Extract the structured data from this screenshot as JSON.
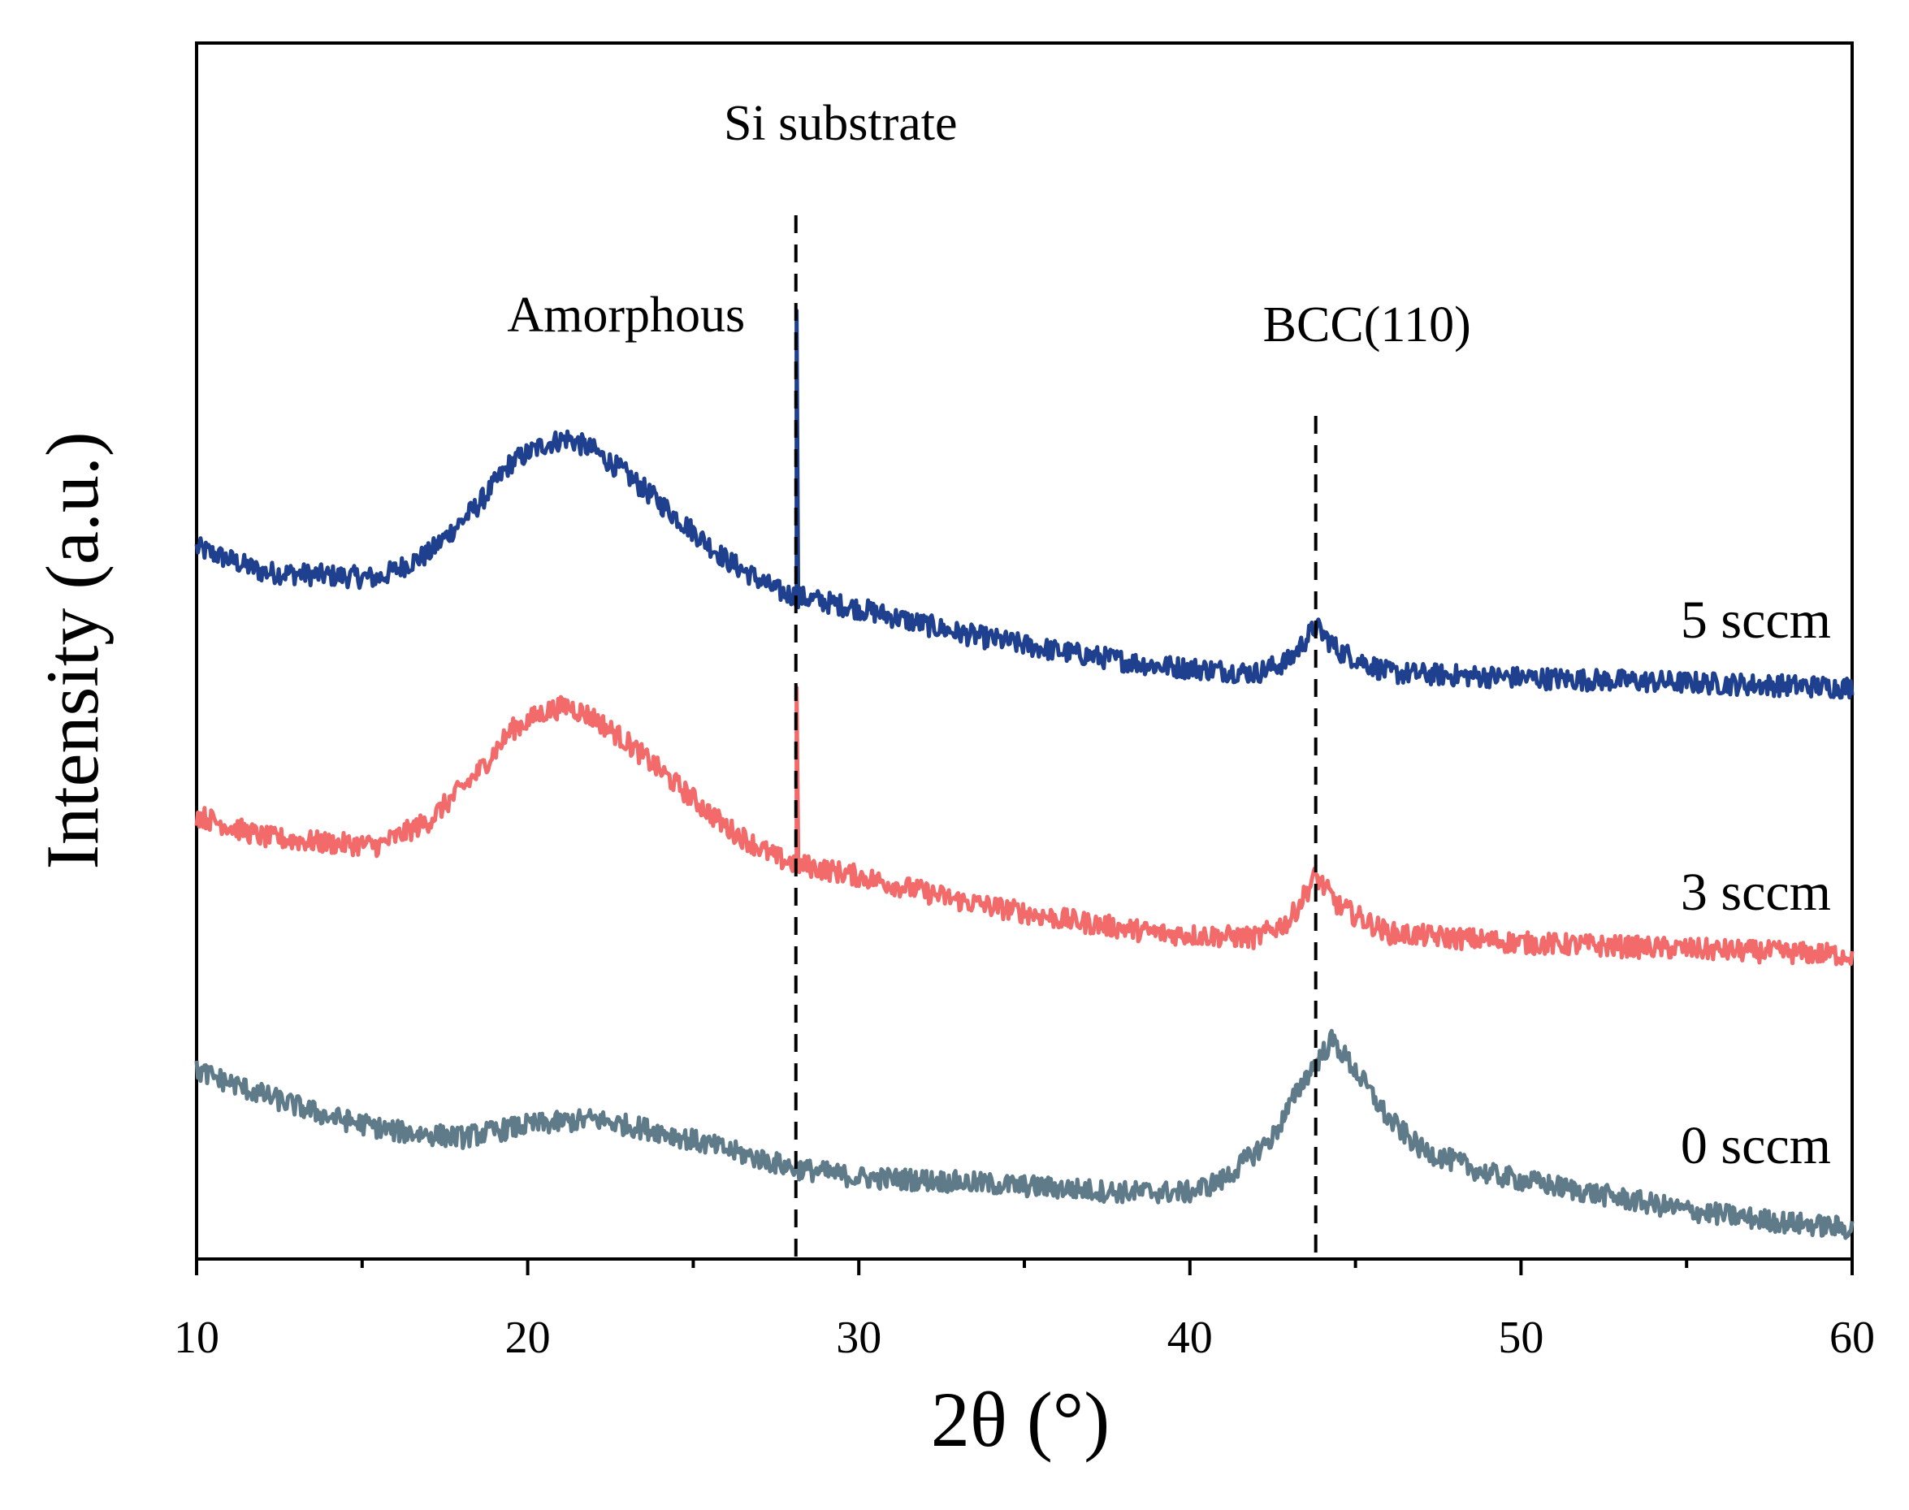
{
  "chart_data": {
    "type": "line",
    "title": "",
    "xlabel": "2θ (°)",
    "ylabel": "Intensity (a.u.)",
    "xlim": [
      10,
      60
    ],
    "ylim": [
      0,
      1
    ],
    "x_ticks": [
      10,
      20,
      30,
      40,
      50,
      60
    ],
    "x_minor_step": 5,
    "y_ticks_shown": false,
    "grid": false,
    "legend": "none (inline labels at right)",
    "series": [
      {
        "name": "5 sccm",
        "color": "#1f3f8f",
        "offset": 0.47,
        "points": [
          [
            10,
            0.115
          ],
          [
            12,
            0.095
          ],
          [
            14,
            0.092
          ],
          [
            15.5,
            0.09
          ],
          [
            17,
            0.11
          ],
          [
            18.5,
            0.15
          ],
          [
            19.5,
            0.185
          ],
          [
            20.5,
            0.2
          ],
          [
            21.2,
            0.205
          ],
          [
            22,
            0.195
          ],
          [
            23,
            0.175
          ],
          [
            24.5,
            0.14
          ],
          [
            26,
            0.105
          ],
          [
            27.5,
            0.08
          ],
          [
            28.1,
            0.075
          ],
          [
            30,
            0.065
          ],
          [
            33,
            0.045
          ],
          [
            36,
            0.03
          ],
          [
            39,
            0.018
          ],
          [
            42,
            0.012
          ],
          [
            43,
            0.022
          ],
          [
            43.8,
            0.05
          ],
          [
            44.5,
            0.03
          ],
          [
            46,
            0.012
          ],
          [
            50,
            0.008
          ],
          [
            55,
            0.004
          ],
          [
            60,
            0.0
          ]
        ]
      },
      {
        "name": "3 sccm",
        "color": "#f26a6a",
        "offset": 0.25,
        "points": [
          [
            10,
            0.115
          ],
          [
            12,
            0.097
          ],
          [
            14,
            0.092
          ],
          [
            15.5,
            0.09
          ],
          [
            17,
            0.11
          ],
          [
            18.5,
            0.15
          ],
          [
            19.5,
            0.185
          ],
          [
            20.5,
            0.2
          ],
          [
            21.2,
            0.205
          ],
          [
            22,
            0.195
          ],
          [
            23,
            0.175
          ],
          [
            24.5,
            0.14
          ],
          [
            26,
            0.105
          ],
          [
            27.5,
            0.08
          ],
          [
            28.1,
            0.075
          ],
          [
            30,
            0.065
          ],
          [
            33,
            0.045
          ],
          [
            36,
            0.03
          ],
          [
            39,
            0.018
          ],
          [
            42,
            0.014
          ],
          [
            43,
            0.028
          ],
          [
            43.8,
            0.065
          ],
          [
            44.5,
            0.04
          ],
          [
            46,
            0.018
          ],
          [
            50,
            0.01
          ],
          [
            55,
            0.005
          ],
          [
            60,
            0.0
          ]
        ]
      },
      {
        "name": "0 sccm",
        "color": "#5f7b8a",
        "offset": 0.025,
        "points": [
          [
            10,
            0.13
          ],
          [
            12,
            0.11
          ],
          [
            14,
            0.092
          ],
          [
            16,
            0.08
          ],
          [
            18,
            0.075
          ],
          [
            20,
            0.085
          ],
          [
            22,
            0.09
          ],
          [
            24,
            0.08
          ],
          [
            26,
            0.065
          ],
          [
            28,
            0.05
          ],
          [
            30,
            0.042
          ],
          [
            32,
            0.04
          ],
          [
            35,
            0.035
          ],
          [
            38,
            0.03
          ],
          [
            40,
            0.03
          ],
          [
            41,
            0.04
          ],
          [
            42.5,
            0.075
          ],
          [
            43.5,
            0.125
          ],
          [
            44.3,
            0.155
          ],
          [
            45,
            0.13
          ],
          [
            46,
            0.09
          ],
          [
            47,
            0.065
          ],
          [
            49,
            0.045
          ],
          [
            52,
            0.03
          ],
          [
            55,
            0.015
          ],
          [
            58,
            0.005
          ],
          [
            60,
            0.0
          ]
        ]
      }
    ],
    "si_peak": {
      "position": 28.1,
      "heights": {
        "5 sccm": 0.235,
        "3 sccm": 0.145
      }
    },
    "reference_lines": [
      {
        "x": 28.1,
        "label": "Si substrate",
        "style": "dashed"
      },
      {
        "x": 43.8,
        "label": "BCC(110)",
        "style": "dashed"
      }
    ],
    "annotations": [
      {
        "text": "Amorphous",
        "x": 21.5
      }
    ]
  }
}
